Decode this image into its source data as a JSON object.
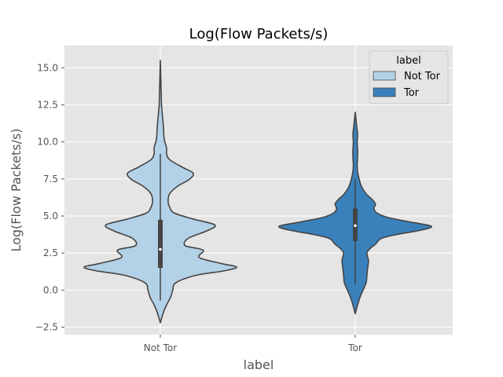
{
  "chart_data": {
    "type": "violin",
    "title": "Log(Flow Packets/s)",
    "xlabel": "label",
    "ylabel": "Log(Flow Packets/s)",
    "ylim": [
      -3.0,
      16.5
    ],
    "yticks": [
      -2.5,
      0.0,
      2.5,
      5.0,
      7.5,
      10.0,
      12.5,
      15.0
    ],
    "ytick_labels": [
      "−2.5",
      "0.0",
      "2.5",
      "5.0",
      "7.5",
      "10.0",
      "12.5",
      "15.0"
    ],
    "categories": [
      "Not Tor",
      "Tor"
    ],
    "grid": true,
    "legend": {
      "title": "label",
      "position": "top-right",
      "entries": [
        "Not Tor",
        "Tor"
      ]
    },
    "series": [
      {
        "name": "Not Tor",
        "color": "#b3d1e7",
        "min": -2.2,
        "max": 15.5,
        "q1": 1.5,
        "median": 2.75,
        "q3": 4.75,
        "whisker_low": -0.7,
        "whisker_high": 9.2,
        "density_y": [
          -2.2,
          -1.5,
          -1.0,
          -0.5,
          0.0,
          0.5,
          1.0,
          1.3,
          1.55,
          1.8,
          2.2,
          2.7,
          3.0,
          3.5,
          4.0,
          4.4,
          4.8,
          5.2,
          5.6,
          6.0,
          6.5,
          7.0,
          7.5,
          7.9,
          8.3,
          8.8,
          9.2,
          9.6,
          10.2,
          11.0,
          11.6,
          12.5,
          13.5,
          15.5
        ],
        "density_w": [
          0.0,
          0.04,
          0.08,
          0.13,
          0.16,
          0.2,
          0.46,
          0.82,
          0.98,
          0.78,
          0.5,
          0.55,
          0.32,
          0.36,
          0.6,
          0.7,
          0.42,
          0.18,
          0.12,
          0.1,
          0.12,
          0.22,
          0.38,
          0.42,
          0.28,
          0.12,
          0.08,
          0.08,
          0.05,
          0.04,
          0.03,
          0.015,
          0.01,
          0.0
        ]
      },
      {
        "name": "Tor",
        "color": "#3a81bc",
        "min": -1.6,
        "max": 12.0,
        "q1": 3.3,
        "median": 4.35,
        "q3": 5.5,
        "whisker_low": 0.4,
        "whisker_high": 7.5,
        "density_y": [
          -1.6,
          -1.0,
          -0.5,
          0.0,
          0.5,
          1.0,
          1.5,
          2.0,
          2.5,
          2.8,
          3.1,
          3.5,
          3.8,
          4.0,
          4.3,
          4.6,
          4.9,
          5.2,
          5.5,
          5.8,
          6.1,
          6.5,
          7.0,
          7.5,
          8.0,
          8.5,
          9.0,
          9.5,
          10.0,
          10.5,
          11.0,
          12.0
        ],
        "density_w": [
          0.0,
          0.03,
          0.06,
          0.1,
          0.14,
          0.15,
          0.16,
          0.17,
          0.15,
          0.19,
          0.26,
          0.34,
          0.58,
          0.8,
          0.98,
          0.7,
          0.42,
          0.28,
          0.24,
          0.26,
          0.22,
          0.14,
          0.08,
          0.05,
          0.03,
          0.025,
          0.03,
          0.03,
          0.025,
          0.03,
          0.02,
          0.0
        ]
      }
    ]
  }
}
